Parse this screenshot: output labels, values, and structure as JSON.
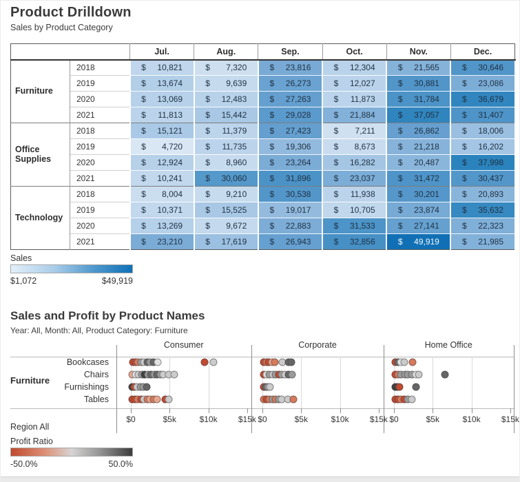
{
  "drilldown": {
    "title": "Product Drilldown",
    "subtitle": "Sales by Product Category",
    "sales_legend": {
      "label": "Sales",
      "min_label": "$1,072",
      "max_label": "$49,919",
      "min_value": 1072,
      "max_value": 49919
    }
  },
  "scatter_section": {
    "title": "Sales and Profit by Product Names",
    "subtitle": "Year: All, Month: All, Product Category: Furniture",
    "category_label": "Furniture",
    "region_label": "Region All",
    "profit_legend": {
      "label": "Profit Ratio",
      "min_label": "-50.0%",
      "max_label": "50.0%"
    }
  },
  "colors": {
    "heat_scale_min": "#e9f0f8",
    "heat_scale_max": "#1170b5",
    "dot_palette": {
      "r": "#c14a31",
      "o": "#d67a5c",
      "lo": "#e7a78f",
      "w": "#e2e2e2",
      "lg": "#cbcbcb",
      "g": "#9b9b9b",
      "dg": "#666666",
      "k": "#404040"
    }
  },
  "chart_data": [
    {
      "type": "heatmap",
      "title": "Product Drilldown",
      "subtitle": "Sales by Product Category",
      "columns": [
        "Jul.",
        "Aug.",
        "Sep.",
        "Oct.",
        "Nov.",
        "Dec."
      ],
      "color_range": [
        1072,
        49919
      ],
      "legend": {
        "label": "Sales",
        "min": "$1,072",
        "max": "$49,919"
      },
      "blocks": [
        {
          "category": "Furniture",
          "years": [
            {
              "year": "2018",
              "values": [
                10821,
                7320,
                23816,
                12304,
                21565,
                30646
              ]
            },
            {
              "year": "2019",
              "values": [
                13674,
                9639,
                26273,
                12027,
                30881,
                23086
              ]
            },
            {
              "year": "2020",
              "values": [
                13069,
                12483,
                27263,
                11873,
                31784,
                36679
              ]
            },
            {
              "year": "2021",
              "values": [
                11813,
                15442,
                29028,
                21884,
                37057,
                31407
              ]
            }
          ]
        },
        {
          "category": "Office Supplies",
          "years": [
            {
              "year": "2018",
              "values": [
                15121,
                11379,
                27423,
                7211,
                26862,
                18006
              ]
            },
            {
              "year": "2019",
              "values": [
                4720,
                11735,
                19306,
                8673,
                21218,
                16202
              ]
            },
            {
              "year": "2020",
              "values": [
                12924,
                8960,
                23264,
                16282,
                20487,
                37998
              ]
            },
            {
              "year": "2021",
              "values": [
                10241,
                30060,
                31896,
                23037,
                31472,
                30437
              ]
            }
          ]
        },
        {
          "category": "Technology",
          "years": [
            {
              "year": "2018",
              "values": [
                8004,
                9210,
                30538,
                11938,
                30201,
                20893
              ]
            },
            {
              "year": "2019",
              "values": [
                10371,
                15525,
                19017,
                10705,
                23874,
                35632
              ]
            },
            {
              "year": "2020",
              "values": [
                13269,
                9672,
                22883,
                31533,
                27141,
                22323
              ]
            },
            {
              "year": "2021",
              "values": [
                23210,
                17619,
                26943,
                32856,
                49919,
                21985
              ]
            }
          ]
        }
      ]
    },
    {
      "type": "scatter",
      "title": "Sales and Profit by Product Names",
      "subtitle": "Year: All, Month: All, Product Category: Furniture",
      "row_category": "Furniture",
      "products": [
        "Bookcases",
        "Chairs",
        "Furnishings",
        "Tables"
      ],
      "axis_ticks": [
        "$0",
        "$5k",
        "$10k",
        "$15k"
      ],
      "axis_range_k": [
        0,
        15
      ],
      "color_legend": {
        "label": "Profit Ratio",
        "min": "-50.0%",
        "max": "50.0%"
      },
      "segments": [
        {
          "label": "Consumer",
          "points": {
            "Bookcases": [
              [
                0.3,
                "r"
              ],
              [
                0.6,
                "r"
              ],
              [
                0.9,
                "o"
              ],
              [
                1.3,
                "g"
              ],
              [
                1.7,
                "lg"
              ],
              [
                2.1,
                "dg"
              ],
              [
                2.5,
                "g"
              ],
              [
                2.9,
                "dg"
              ],
              [
                3.5,
                "w"
              ],
              [
                9.5,
                "r"
              ],
              [
                10.7,
                "lg"
              ]
            ],
            "Chairs": [
              [
                0.2,
                "lo"
              ],
              [
                0.6,
                "w"
              ],
              [
                1.0,
                "lg"
              ],
              [
                1.4,
                "g"
              ],
              [
                1.8,
                "k"
              ],
              [
                2.2,
                "g"
              ],
              [
                2.6,
                "dg"
              ],
              [
                3.0,
                "g"
              ],
              [
                3.4,
                "dg"
              ],
              [
                3.8,
                "g"
              ],
              [
                4.2,
                "lg"
              ],
              [
                4.9,
                "lg"
              ],
              [
                5.6,
                "lg"
              ]
            ],
            "Furnishings": [
              [
                0.15,
                "k"
              ],
              [
                0.4,
                "r"
              ],
              [
                0.8,
                "lg"
              ],
              [
                1.2,
                "g"
              ],
              [
                1.6,
                "g"
              ],
              [
                2.0,
                "dg"
              ]
            ],
            "Tables": [
              [
                0.2,
                "r"
              ],
              [
                0.5,
                "r"
              ],
              [
                0.9,
                "o"
              ],
              [
                1.3,
                "r"
              ],
              [
                1.7,
                "lg"
              ],
              [
                2.1,
                "o"
              ],
              [
                2.5,
                "lo"
              ],
              [
                2.9,
                "o"
              ],
              [
                3.4,
                "lo"
              ],
              [
                4.4,
                "r"
              ],
              [
                4.9,
                "lg"
              ]
            ]
          }
        },
        {
          "label": "Corporate",
          "points": {
            "Bookcases": [
              [
                0.2,
                "r"
              ],
              [
                0.5,
                "o"
              ],
              [
                0.8,
                "r"
              ],
              [
                1.2,
                "lo"
              ],
              [
                1.6,
                "o"
              ],
              [
                2.6,
                "lg"
              ],
              [
                3.4,
                "dg"
              ],
              [
                3.7,
                "dg"
              ]
            ],
            "Chairs": [
              [
                0.2,
                "r"
              ],
              [
                0.5,
                "w"
              ],
              [
                0.9,
                "g"
              ],
              [
                1.3,
                "lg"
              ],
              [
                1.7,
                "g"
              ],
              [
                2.1,
                "r"
              ],
              [
                2.5,
                "g"
              ],
              [
                2.9,
                "lg"
              ],
              [
                3.4,
                "dg"
              ],
              [
                3.8,
                "g"
              ]
            ],
            "Furnishings": [
              [
                0.15,
                "r"
              ],
              [
                0.4,
                "dg"
              ],
              [
                0.7,
                "g"
              ],
              [
                1.0,
                "lg"
              ]
            ],
            "Tables": [
              [
                0.2,
                "o"
              ],
              [
                0.5,
                "r"
              ],
              [
                0.9,
                "o"
              ],
              [
                1.3,
                "g"
              ],
              [
                1.7,
                "o"
              ],
              [
                2.1,
                "g"
              ],
              [
                2.5,
                "lg"
              ],
              [
                3.3,
                "lg"
              ],
              [
                4.0,
                "o"
              ]
            ]
          }
        },
        {
          "label": "Home Office",
          "points": {
            "Bookcases": [
              [
                0.2,
                "r"
              ],
              [
                0.5,
                "dg"
              ],
              [
                0.9,
                "w"
              ],
              [
                1.3,
                "lg"
              ],
              [
                2.4,
                "o"
              ]
            ],
            "Chairs": [
              [
                0.2,
                "r"
              ],
              [
                0.5,
                "o"
              ],
              [
                0.9,
                "g"
              ],
              [
                1.4,
                "g"
              ],
              [
                1.8,
                "g"
              ],
              [
                2.3,
                "g"
              ],
              [
                2.8,
                "w"
              ],
              [
                3.2,
                "lg"
              ],
              [
                6.6,
                "dg"
              ]
            ],
            "Furnishings": [
              [
                0.2,
                "k"
              ],
              [
                0.45,
                "k"
              ],
              [
                0.7,
                "r"
              ],
              [
                2.8,
                "dg"
              ]
            ],
            "Tables": [
              [
                0.2,
                "r"
              ],
              [
                0.5,
                "r"
              ],
              [
                0.9,
                "o"
              ],
              [
                1.3,
                "r"
              ],
              [
                1.8,
                "g"
              ],
              [
                2.3,
                "lg"
              ]
            ]
          }
        }
      ]
    }
  ]
}
